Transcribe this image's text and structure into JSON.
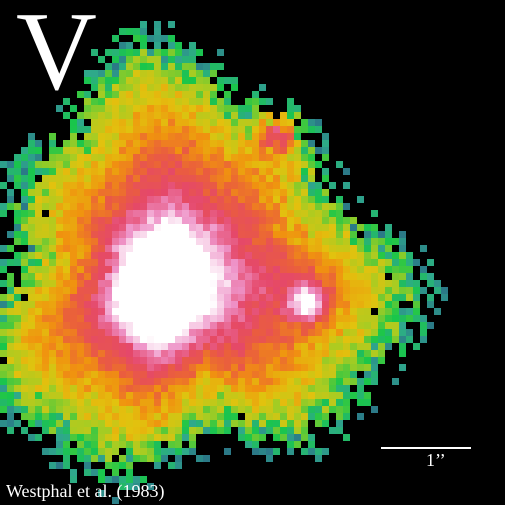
{
  "image": {
    "subject": "false-color astronomical image, galaxy core with two compact knots",
    "palette": [
      "#000000",
      "#2a6f86",
      "#2fa88c",
      "#19c64a",
      "#a8cc22",
      "#e2c20e",
      "#f0920f",
      "#ea5d3e",
      "#e5486a",
      "#ee93c8",
      "#ffffff"
    ]
  },
  "overlay": {
    "band_label": "V",
    "scale_bar_label": "1’’",
    "credit": "Westphal et al. (1983)"
  }
}
